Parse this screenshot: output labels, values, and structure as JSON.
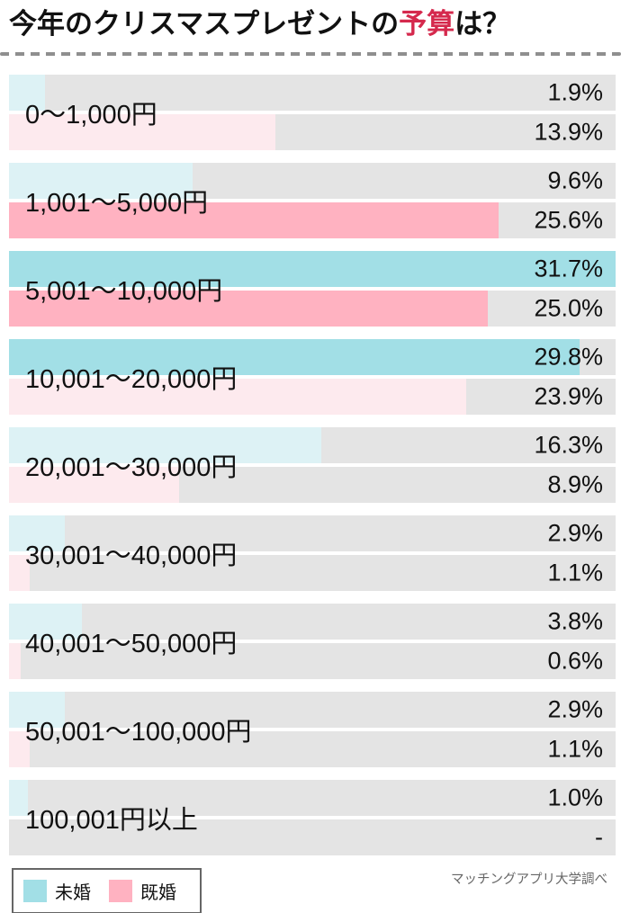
{
  "title": {
    "prefix": "今年のクリスマスプレゼントの",
    "highlight": "予算",
    "suffix": "は？"
  },
  "source": "マッチングアプリ大学調べ",
  "colors": {
    "highlight_red": "#d5294d",
    "track_gray": "#e4e4e4",
    "dash_gray": "#8f8f8f",
    "unmarried_strong": "#a2dfe6",
    "unmarried_muted": "#ddf2f5",
    "married_strong": "#ffb2c1",
    "married_muted": "#fdeaee",
    "source_text": "#666666"
  },
  "chart_data": {
    "type": "bar",
    "orientation": "horizontal",
    "title": "今年のクリスマスプレゼントの予算は？",
    "categories": [
      "0〜1,000円",
      "1,001〜5,000円",
      "5,001〜10,000円",
      "10,001〜20,000円",
      "20,001〜30,000円",
      "30,001〜40,000円",
      "40,001〜50,000円",
      "50,001〜100,000円",
      "100,001円以上"
    ],
    "series": [
      {
        "name": "未婚",
        "color": "#a2dfe6",
        "color_muted": "#ddf2f5",
        "values": [
          1.9,
          9.6,
          31.7,
          29.8,
          16.3,
          2.9,
          3.8,
          2.9,
          1.0
        ]
      },
      {
        "name": "既婚",
        "color": "#ffb2c1",
        "color_muted": "#fdeaee",
        "values": [
          13.9,
          25.6,
          25.0,
          23.9,
          8.9,
          1.1,
          0.6,
          1.1,
          null
        ]
      }
    ],
    "value_labels": [
      [
        "1.9%",
        "13.9%"
      ],
      [
        "9.6%",
        "25.6%"
      ],
      [
        "31.7%",
        "25.0%"
      ],
      [
        "29.8%",
        "23.9%"
      ],
      [
        "16.3%",
        "8.9%"
      ],
      [
        "2.9%",
        "1.1%"
      ],
      [
        "3.8%",
        "0.6%"
      ],
      [
        "2.9%",
        "1.1%"
      ],
      [
        "1.0%",
        "-"
      ]
    ],
    "xlim": [
      0,
      31.7
    ],
    "bar_scale_max": 31.7,
    "emphasis_threshold": 25,
    "grid": false,
    "legend_position": "bottom-left"
  }
}
